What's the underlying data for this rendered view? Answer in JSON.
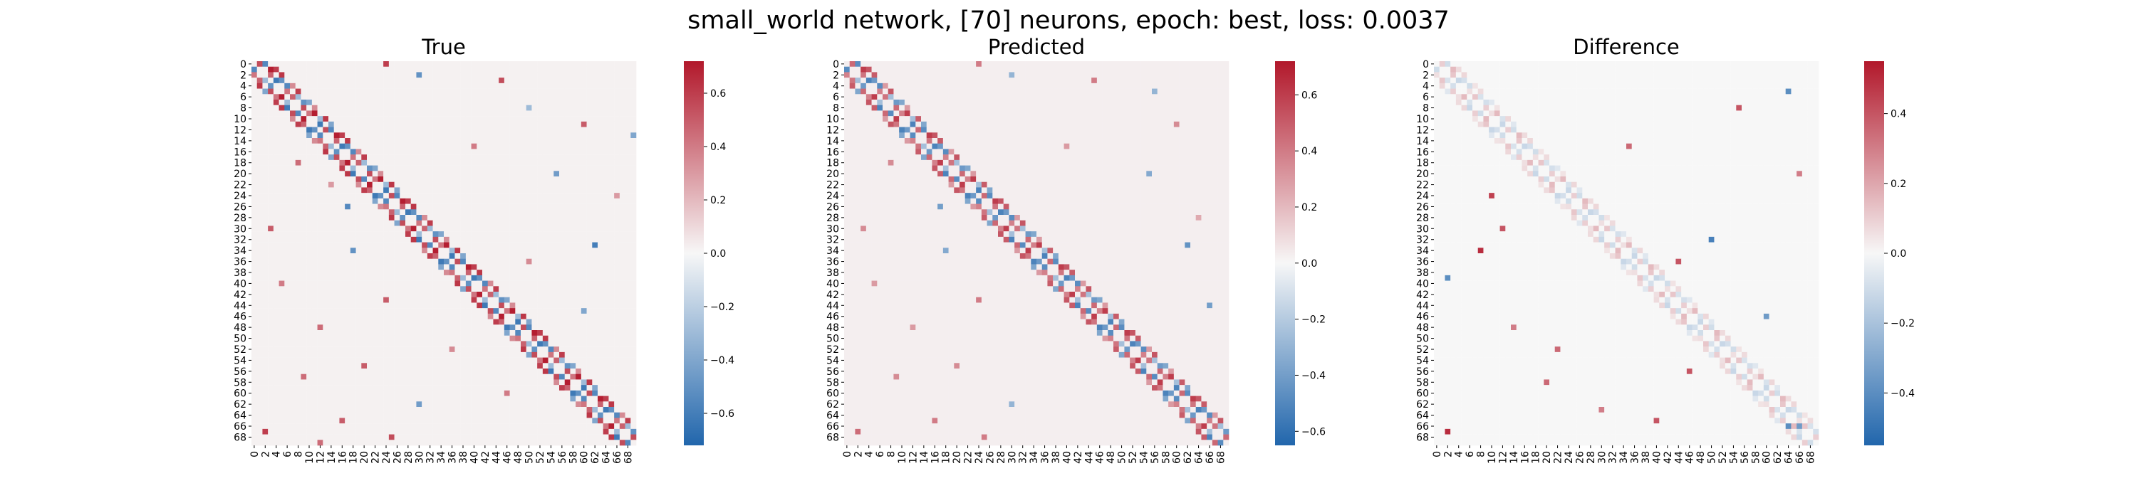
{
  "suptitle": "small_world network, [70] neurons, epoch: best, loss: 0.0037",
  "colormap": {
    "name": "vlag",
    "neg": "#2166ac",
    "mid": "#f7f7f7",
    "pos": "#b2182b"
  },
  "chart_data": [
    {
      "type": "heatmap",
      "title": "True",
      "n": 70,
      "tick_labels": [
        "0",
        "2",
        "4",
        "6",
        "8",
        "10",
        "12",
        "14",
        "16",
        "18",
        "20",
        "22",
        "24",
        "26",
        "28",
        "30",
        "32",
        "34",
        "36",
        "38",
        "40",
        "42",
        "44",
        "46",
        "48",
        "50",
        "52",
        "54",
        "56",
        "58",
        "60",
        "62",
        "64",
        "66",
        "68"
      ],
      "vmin": -0.72,
      "vmax": 0.72,
      "colorbar_ticks": [
        -0.6,
        -0.4,
        -0.2,
        0.0,
        0.2,
        0.4,
        0.6
      ],
      "colorbar_labels": [
        "−0.6",
        "−0.4",
        "−0.2",
        "0.0",
        "0.2",
        "0.4",
        "0.6"
      ],
      "background_value": 0.02,
      "band_width": 3,
      "band_values": [
        0.62,
        -0.55,
        0.48,
        -0.4,
        0.7,
        -0.62,
        0.35,
        -0.3,
        0.55,
        0.6,
        -0.5,
        0.42
      ],
      "off_band_cells": [
        [
          0,
          24,
          0.6
        ],
        [
          2,
          30,
          -0.5
        ],
        [
          3,
          45,
          0.55
        ],
        [
          11,
          60,
          0.5
        ],
        [
          13,
          69,
          -0.4
        ],
        [
          15,
          40,
          0.4
        ],
        [
          18,
          8,
          0.45
        ],
        [
          20,
          55,
          -0.45
        ],
        [
          22,
          14,
          0.3
        ],
        [
          26,
          17,
          -0.55
        ],
        [
          30,
          3,
          0.5
        ],
        [
          33,
          62,
          -0.6
        ],
        [
          34,
          18,
          -0.5
        ],
        [
          36,
          50,
          0.35
        ],
        [
          40,
          5,
          0.4
        ],
        [
          43,
          24,
          0.5
        ],
        [
          45,
          60,
          -0.4
        ],
        [
          48,
          12,
          0.45
        ],
        [
          52,
          36,
          0.35
        ],
        [
          55,
          20,
          0.5
        ],
        [
          57,
          9,
          0.45
        ],
        [
          60,
          46,
          0.4
        ],
        [
          62,
          30,
          -0.45
        ],
        [
          65,
          16,
          0.5
        ],
        [
          67,
          2,
          0.6
        ],
        [
          68,
          25,
          0.55
        ],
        [
          69,
          12,
          0.45
        ],
        [
          8,
          50,
          -0.3
        ],
        [
          24,
          66,
          0.3
        ]
      ]
    },
    {
      "type": "heatmap",
      "title": "Predicted",
      "n": 70,
      "tick_labels": [
        "0",
        "2",
        "4",
        "6",
        "8",
        "10",
        "12",
        "14",
        "16",
        "18",
        "20",
        "22",
        "24",
        "26",
        "28",
        "30",
        "32",
        "34",
        "36",
        "38",
        "40",
        "42",
        "44",
        "46",
        "48",
        "50",
        "52",
        "54",
        "56",
        "58",
        "60",
        "62",
        "64",
        "66",
        "68"
      ],
      "vmin": -0.65,
      "vmax": 0.72,
      "colorbar_ticks": [
        -0.6,
        -0.4,
        -0.2,
        0.0,
        0.2,
        0.4,
        0.6
      ],
      "colorbar_labels": [
        "−0.6",
        "−0.4",
        "−0.2",
        "0.0",
        "0.2",
        "0.4",
        "0.6"
      ],
      "background_value": 0.03,
      "band_width": 3,
      "band_values": [
        0.5,
        -0.48,
        0.42,
        -0.36,
        0.6,
        -0.52,
        0.3,
        -0.25,
        0.46,
        0.52,
        -0.42,
        0.38
      ],
      "off_band_cells": [
        [
          0,
          24,
          0.4
        ],
        [
          2,
          30,
          -0.3
        ],
        [
          3,
          45,
          0.4
        ],
        [
          11,
          60,
          0.35
        ],
        [
          15,
          40,
          0.3
        ],
        [
          18,
          8,
          0.35
        ],
        [
          20,
          55,
          -0.35
        ],
        [
          26,
          17,
          -0.4
        ],
        [
          30,
          3,
          0.35
        ],
        [
          33,
          62,
          -0.45
        ],
        [
          34,
          18,
          -0.35
        ],
        [
          40,
          5,
          0.3
        ],
        [
          43,
          24,
          0.4
        ],
        [
          48,
          12,
          0.3
        ],
        [
          55,
          20,
          0.35
        ],
        [
          57,
          9,
          0.35
        ],
        [
          62,
          30,
          -0.3
        ],
        [
          65,
          16,
          0.4
        ],
        [
          67,
          2,
          0.45
        ],
        [
          68,
          25,
          0.4
        ],
        [
          5,
          56,
          -0.3
        ],
        [
          28,
          64,
          0.25
        ],
        [
          44,
          66,
          -0.4
        ]
      ]
    },
    {
      "type": "heatmap",
      "title": "Difference",
      "n": 70,
      "tick_labels": [
        "0",
        "2",
        "4",
        "6",
        "8",
        "10",
        "12",
        "14",
        "16",
        "18",
        "20",
        "22",
        "24",
        "26",
        "28",
        "30",
        "32",
        "34",
        "36",
        "38",
        "40",
        "42",
        "44",
        "46",
        "48",
        "50",
        "52",
        "54",
        "56",
        "58",
        "60",
        "62",
        "64",
        "66",
        "68"
      ],
      "vmin": -0.55,
      "vmax": 0.55,
      "colorbar_ticks": [
        -0.4,
        -0.2,
        0.0,
        0.2,
        0.4
      ],
      "colorbar_labels": [
        "−0.4",
        "−0.2",
        "0.0",
        "0.2",
        "0.4"
      ],
      "background_value": 0.0,
      "band_width": 3,
      "band_values": [
        0.08,
        -0.1,
        0.12,
        -0.06,
        0.15,
        -0.12,
        0.05,
        -0.08,
        0.1,
        0.07,
        -0.09,
        0.06
      ],
      "off_band_cells": [
        [
          24,
          10,
          0.45
        ],
        [
          30,
          12,
          0.4
        ],
        [
          34,
          8,
          0.5
        ],
        [
          36,
          44,
          0.4
        ],
        [
          39,
          2,
          -0.4
        ],
        [
          48,
          14,
          0.3
        ],
        [
          52,
          22,
          0.35
        ],
        [
          56,
          46,
          0.4
        ],
        [
          58,
          20,
          0.35
        ],
        [
          63,
          30,
          0.3
        ],
        [
          65,
          40,
          0.4
        ],
        [
          67,
          2,
          0.5
        ],
        [
          15,
          35,
          0.35
        ],
        [
          5,
          64,
          -0.4
        ],
        [
          8,
          55,
          0.4
        ],
        [
          20,
          66,
          0.3
        ],
        [
          32,
          50,
          -0.45
        ],
        [
          46,
          60,
          -0.35
        ],
        [
          66,
          64,
          -0.4
        ],
        [
          66,
          66,
          -0.35
        ]
      ]
    }
  ]
}
